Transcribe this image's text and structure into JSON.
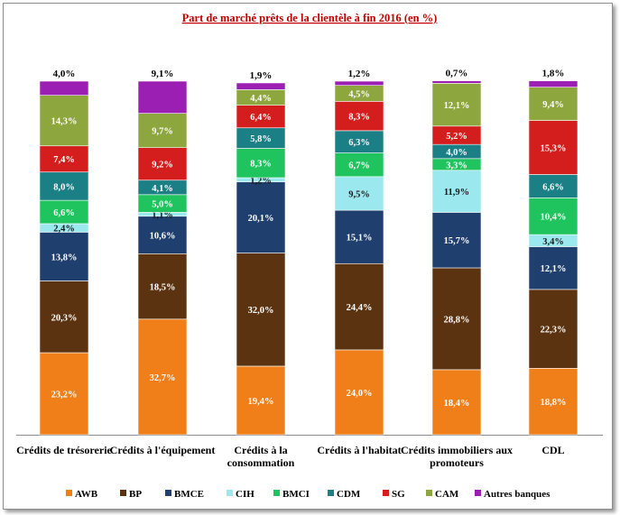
{
  "chart_data": {
    "type": "bar",
    "stacked": true,
    "normalized_percent": true,
    "title": "Part de marché prêts de la clientèle à fin 2016 (en %)",
    "categories": [
      [
        "Crédits de trésorerie"
      ],
      [
        "Crédits à l'équipement"
      ],
      [
        "Crédits à la",
        "consommation"
      ],
      [
        "Crédits à l'habitat"
      ],
      [
        "Crédits immobiliers aux",
        "promoteurs"
      ],
      [
        "CDL"
      ]
    ],
    "series": [
      {
        "name": "AWB",
        "color": "#f07f1a",
        "label_color": "#ffffff",
        "values": [
          23.2,
          32.7,
          19.4,
          24.0,
          18.4,
          18.8
        ],
        "labels": [
          "23,2%",
          "32,7%",
          "19,4%",
          "24,0%",
          "18,4%",
          "18,8%"
        ]
      },
      {
        "name": "BP",
        "color": "#5c3310",
        "label_color": "#ffffff",
        "values": [
          20.3,
          18.5,
          32.0,
          24.4,
          28.8,
          22.3
        ],
        "labels": [
          "20,3%",
          "18,5%",
          "32,0%",
          "24,4%",
          "28,8%",
          "22,3%"
        ]
      },
      {
        "name": "BMCE",
        "color": "#1f3f6e",
        "label_color": "#ffffff",
        "values": [
          13.8,
          10.6,
          20.1,
          15.1,
          15.7,
          12.1
        ],
        "labels": [
          "13,8%",
          "10,6%",
          "20,1%",
          "15,1%",
          "15,7%",
          "12,1%"
        ]
      },
      {
        "name": "CIH",
        "color": "#9be9ef",
        "label_color": "#1a1a1a",
        "values": [
          2.4,
          1.1,
          1.2,
          9.5,
          11.9,
          3.4
        ],
        "labels": [
          "2,4%",
          "1,1%",
          "1,2%",
          "9,5%",
          "11,9%",
          "3,4%"
        ]
      },
      {
        "name": "BMCI",
        "color": "#1fc45e",
        "label_color": "#ffffff",
        "values": [
          6.6,
          5.0,
          8.3,
          6.7,
          3.3,
          10.4
        ],
        "labels": [
          "6,6%",
          "5,0%",
          "8,3%",
          "6,7%",
          "3,3%",
          "10,4%"
        ]
      },
      {
        "name": "CDM",
        "color": "#1b7f86",
        "label_color": "#ffffff",
        "values": [
          8.0,
          4.1,
          5.8,
          6.3,
          4.0,
          6.6
        ],
        "labels": [
          "8,0%",
          "4,1%",
          "5,8%",
          "6,3%",
          "4,0%",
          "6,6%"
        ]
      },
      {
        "name": "SG",
        "color": "#d41d1d",
        "label_color": "#ffffff",
        "values": [
          7.4,
          9.2,
          6.4,
          8.3,
          5.2,
          15.3
        ],
        "labels": [
          "7,4%",
          "9,2%",
          "6,4%",
          "8,3%",
          "5,2%",
          "15,3%"
        ]
      },
      {
        "name": "CAM",
        "color": "#8ea63e",
        "label_color": "#ffffff",
        "values": [
          14.3,
          9.7,
          4.4,
          4.5,
          12.1,
          9.4
        ],
        "labels": [
          "14,3%",
          "9,7%",
          "4,4%",
          "4,5%",
          "12,1%",
          "9,4%"
        ]
      },
      {
        "name": "Autres banques",
        "color": "#9c1fb3",
        "label_color": "#000000",
        "values": [
          4.0,
          9.1,
          1.9,
          1.2,
          0.7,
          1.8
        ],
        "labels": [
          "4,0%",
          "9,1%",
          "1,9%",
          "1,2%",
          "0,7%",
          "1,8%"
        ]
      }
    ],
    "ylim": [
      0,
      100
    ],
    "grid": false,
    "legend_position": "bottom"
  }
}
